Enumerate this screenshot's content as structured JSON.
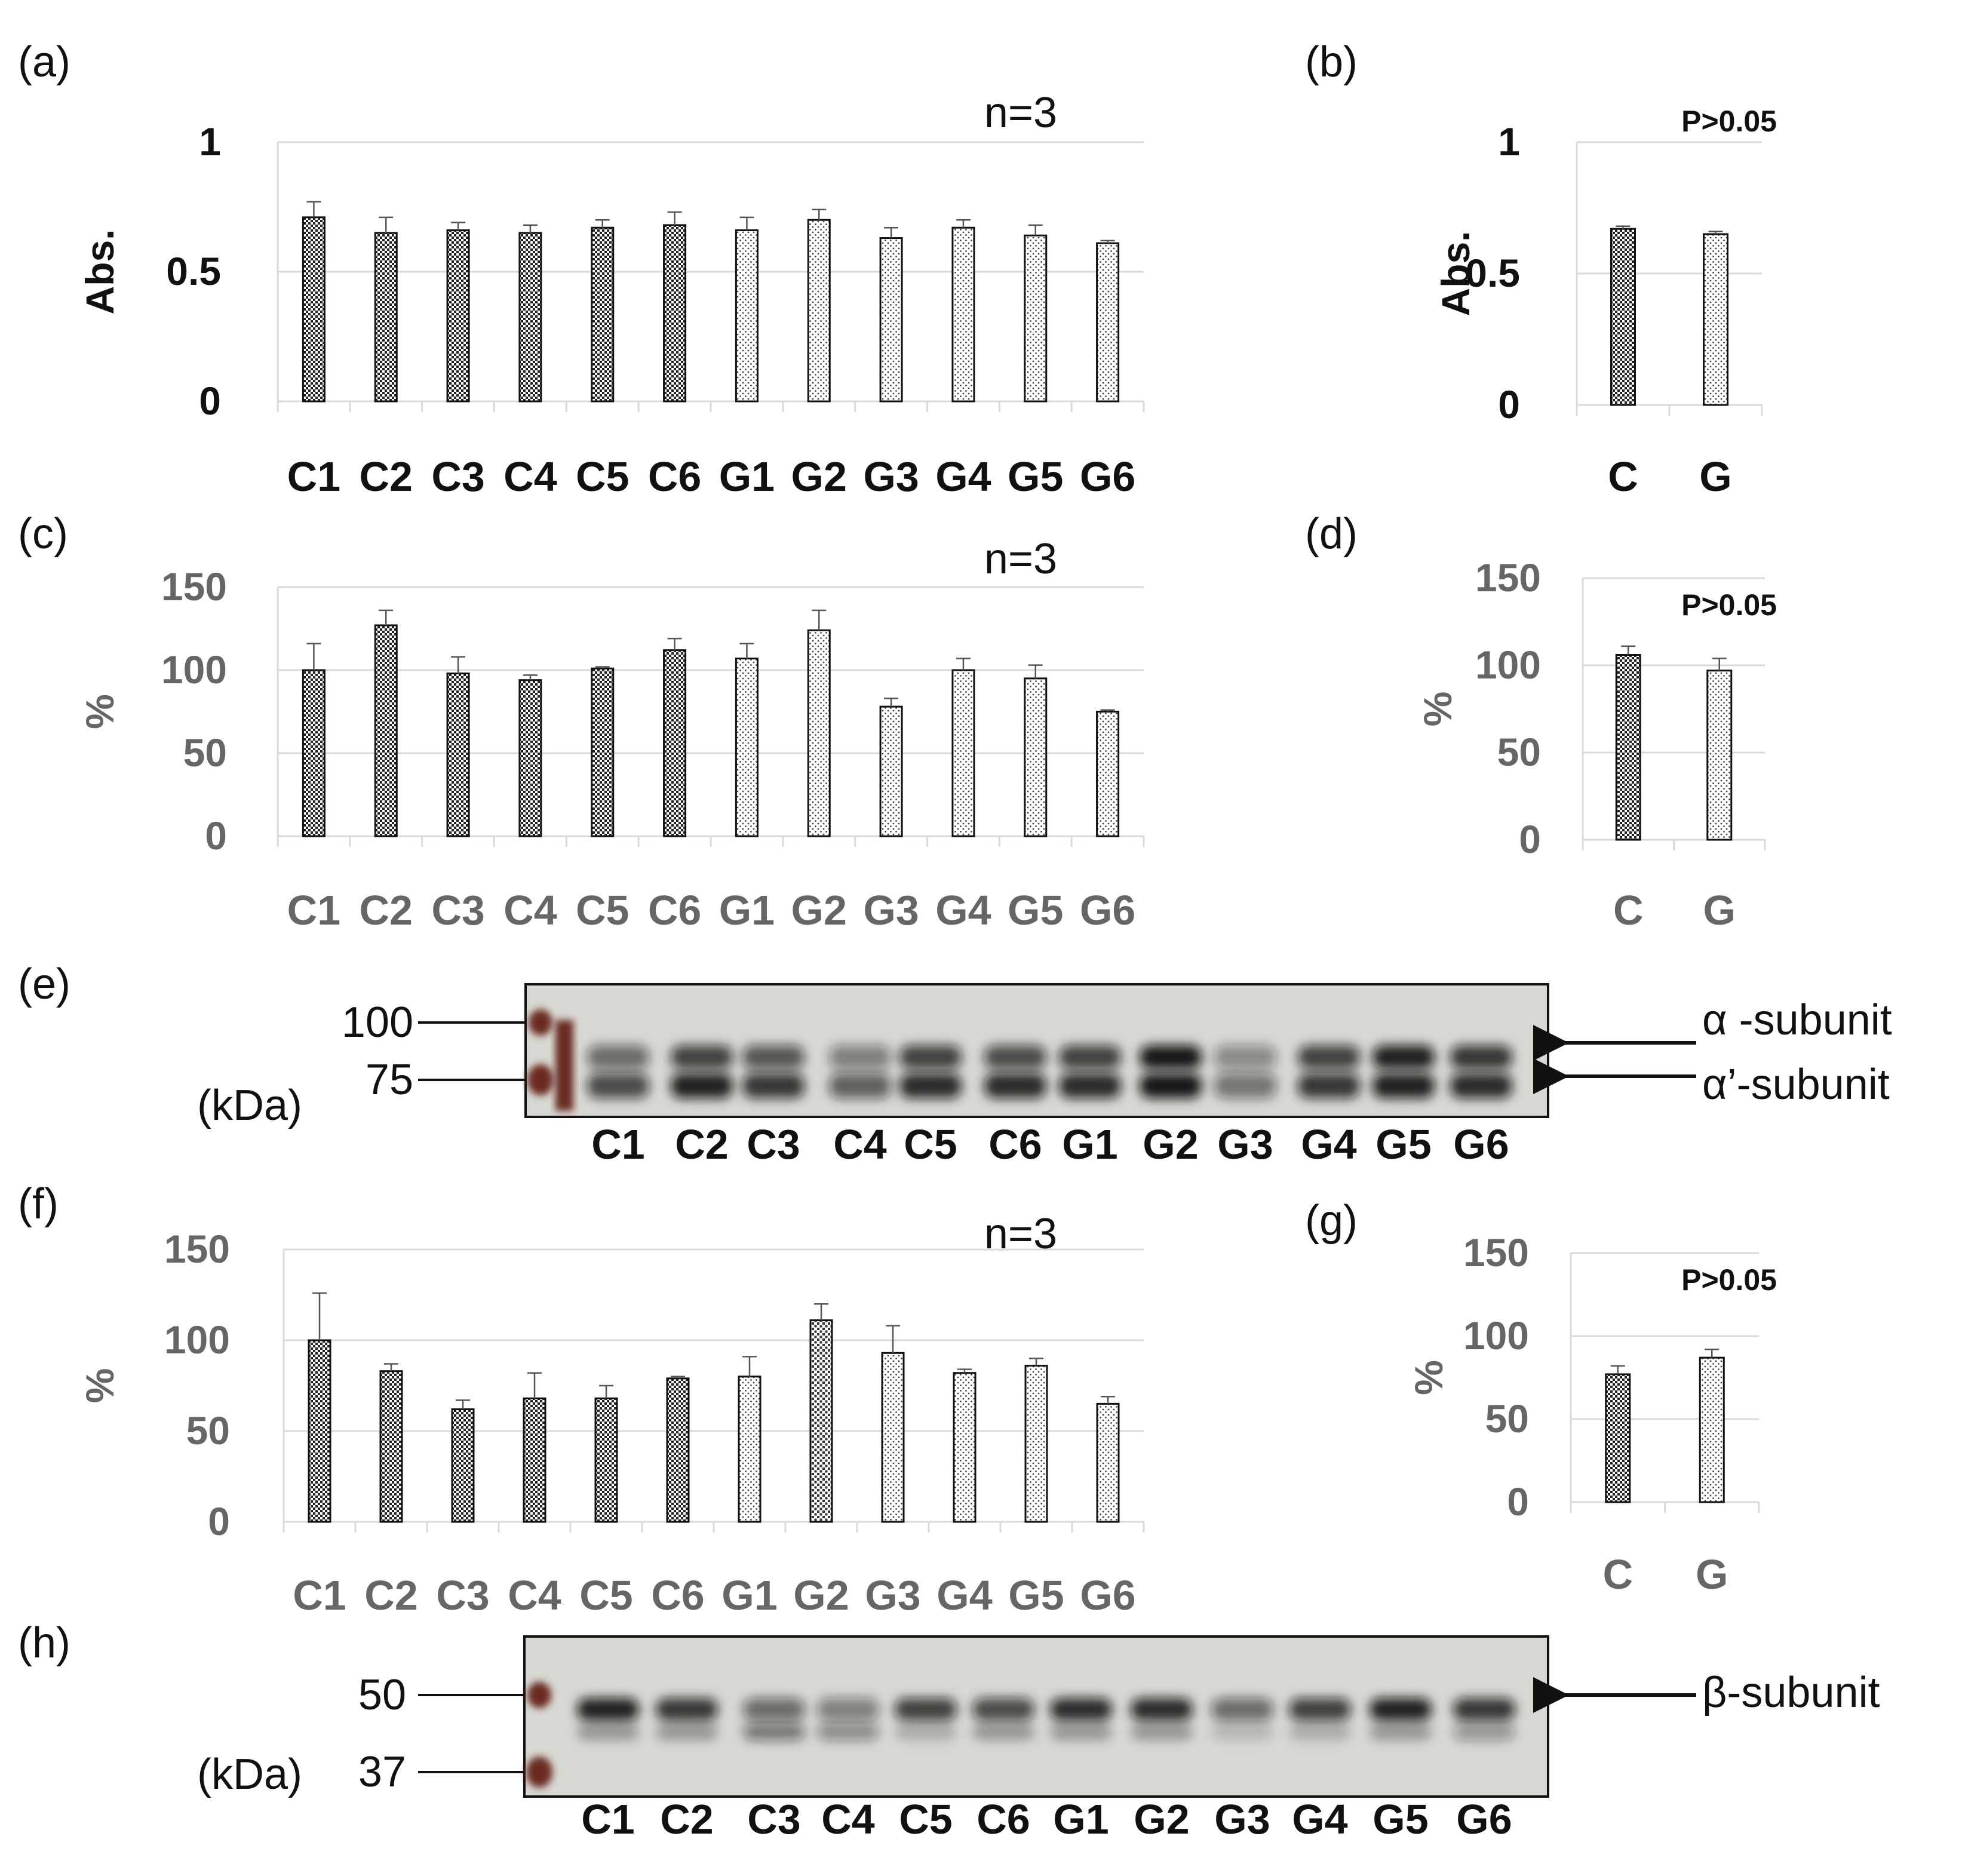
{
  "chart_data": [
    {
      "panel": "(a)",
      "type": "bar",
      "annotation": "n=3",
      "ylabel": "Abs.",
      "ylim": [
        0,
        1
      ],
      "yticks": [
        0,
        0.5,
        1
      ],
      "categories": [
        "C1",
        "C2",
        "C3",
        "C4",
        "C5",
        "C6",
        "G1",
        "G2",
        "G3",
        "G4",
        "G5",
        "G6"
      ],
      "values": [
        0.71,
        0.65,
        0.66,
        0.65,
        0.67,
        0.68,
        0.66,
        0.7,
        0.63,
        0.67,
        0.64,
        0.61
      ],
      "errors": [
        0.06,
        0.06,
        0.03,
        0.03,
        0.03,
        0.05,
        0.05,
        0.04,
        0.04,
        0.03,
        0.04,
        0.01
      ],
      "grid": true
    },
    {
      "panel": "(b)",
      "type": "bar",
      "annotation": "P>0.05",
      "ylabel": "Abs.",
      "ylim": [
        0,
        1
      ],
      "yticks": [
        0,
        0.5,
        1
      ],
      "categories": [
        "C",
        "G"
      ],
      "values": [
        0.67,
        0.65
      ],
      "errors": [
        0.01,
        0.01
      ],
      "grid": true
    },
    {
      "panel": "(c)",
      "type": "bar",
      "annotation": "n=3",
      "ylabel": "%",
      "ylim": [
        0,
        150
      ],
      "yticks": [
        0,
        50,
        100,
        150
      ],
      "categories": [
        "C1",
        "C2",
        "C3",
        "C4",
        "C5",
        "C6",
        "G1",
        "G2",
        "G3",
        "G4",
        "G5",
        "G6"
      ],
      "values": [
        100,
        127,
        98,
        94,
        101,
        112,
        107,
        124,
        78,
        100,
        95,
        75
      ],
      "errors": [
        16,
        9,
        10,
        3,
        1,
        7,
        9,
        12,
        5,
        7,
        8,
        1
      ],
      "grid": true
    },
    {
      "panel": "(d)",
      "type": "bar",
      "annotation": "P>0.05",
      "ylabel": "%",
      "ylim": [
        0,
        150
      ],
      "yticks": [
        0,
        50,
        100,
        150
      ],
      "categories": [
        "C",
        "G"
      ],
      "values": [
        106,
        97
      ],
      "errors": [
        5,
        7
      ],
      "grid": true
    },
    {
      "panel": "(f)",
      "type": "bar",
      "annotation": "n=3",
      "ylabel": "%",
      "ylim": [
        0,
        150
      ],
      "yticks": [
        0,
        50,
        100,
        150
      ],
      "categories": [
        "C1",
        "C2",
        "C3",
        "C4",
        "C5",
        "C6",
        "G1",
        "G2",
        "G3",
        "G4",
        "G5",
        "G6"
      ],
      "values": [
        100,
        83,
        62,
        68,
        68,
        79,
        80,
        111,
        93,
        82,
        86,
        65
      ],
      "errors": [
        26,
        4,
        5,
        14,
        7,
        1,
        11,
        9,
        15,
        2,
        4,
        4
      ],
      "grid": true
    },
    {
      "panel": "(g)",
      "type": "bar",
      "annotation": "P>0.05",
      "ylabel": "%",
      "ylim": [
        0,
        150
      ],
      "yticks": [
        0,
        50,
        100,
        150
      ],
      "categories": [
        "C",
        "G"
      ],
      "values": [
        77,
        87
      ],
      "errors": [
        5,
        5
      ],
      "grid": true
    }
  ],
  "blots": [
    {
      "panel": "(e)",
      "markers": [
        "100",
        "75"
      ],
      "unit": "(kDa)",
      "arrows": [
        "α -subunit",
        "α’-subunit"
      ],
      "lanes": [
        "C1",
        "C2",
        "C3",
        "C4",
        "C5",
        "C6",
        "G1",
        "G2",
        "G3",
        "G4",
        "G5",
        "G6"
      ],
      "upper_band_intensity": [
        0.55,
        0.75,
        0.65,
        0.45,
        0.75,
        0.7,
        0.75,
        0.95,
        0.4,
        0.75,
        0.9,
        0.8
      ],
      "lower_band_intensity": [
        0.7,
        0.9,
        0.8,
        0.6,
        0.85,
        0.85,
        0.85,
        0.95,
        0.5,
        0.8,
        0.9,
        0.85
      ]
    },
    {
      "panel": "(h)",
      "markers": [
        "50",
        "37"
      ],
      "unit": "(kDa)",
      "arrows": [
        "β-subunit"
      ],
      "lanes": [
        "C1",
        "C2",
        "C3",
        "C4",
        "C5",
        "C6",
        "G1",
        "G2",
        "G3",
        "G4",
        "G5",
        "G6"
      ],
      "upper_band_intensity": [
        0.9,
        0.8,
        0.55,
        0.45,
        0.75,
        0.7,
        0.85,
        0.85,
        0.55,
        0.75,
        0.9,
        0.8
      ],
      "lower_band_intensity": [
        0.3,
        0.3,
        0.5,
        0.4,
        0.2,
        0.3,
        0.3,
        0.3,
        0.15,
        0.2,
        0.3,
        0.35
      ]
    }
  ]
}
